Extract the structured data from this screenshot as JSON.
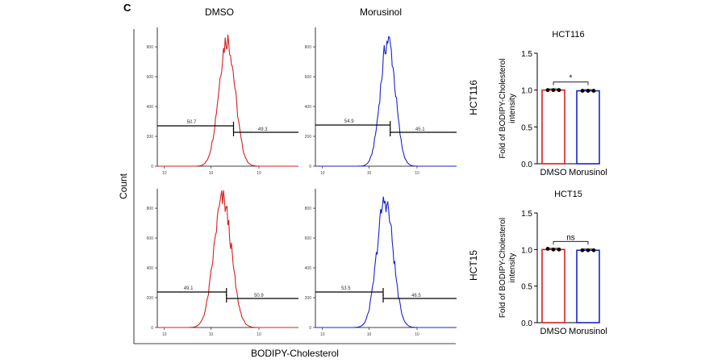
{
  "panel_label": "C",
  "columns": [
    "DMSO",
    "Morusinol"
  ],
  "rows": [
    "HCT116",
    "HCT15"
  ],
  "shared_y_label": "Count",
  "shared_x_label": "BODIPY-Cholesterol",
  "colors": {
    "dmso": "#d42020",
    "morusinol": "#1c24c8",
    "axis": "#000000"
  },
  "histogram_y_ticks": [
    "0",
    "200",
    "400",
    "600",
    "800"
  ],
  "histogram_x_ticks": [
    "10",
    "10",
    "10"
  ],
  "histograms": [
    {
      "row": "HCT116",
      "condition": "DMSO",
      "color": "#d42020",
      "gate_left": "50.7",
      "gate_right": "49.3"
    },
    {
      "row": "HCT116",
      "condition": "Morusinol",
      "color": "#1c24c8",
      "gate_left": "54.9",
      "gate_right": "45.1"
    },
    {
      "row": "HCT15",
      "condition": "DMSO",
      "color": "#d42020",
      "gate_left": "49.1",
      "gate_right": "50.9"
    },
    {
      "row": "HCT15",
      "condition": "Morusinol",
      "color": "#1c24c8",
      "gate_left": "53.5",
      "gate_right": "46.5"
    }
  ],
  "chart_data": [
    {
      "type": "bar",
      "title": "HCT116",
      "categories": [
        "DMSO",
        "Morusinol"
      ],
      "values": [
        1.0,
        0.99
      ],
      "points": [
        [
          1.0,
          1.0,
          1.0
        ],
        [
          0.99,
          0.99,
          0.99
        ]
      ],
      "bar_colors": [
        "#d42020",
        "#1c24c8"
      ],
      "ylabel_line1": "Fold of BODIPY-Cholesterol",
      "ylabel_line2": "intensity",
      "ylim": [
        0,
        1.5
      ],
      "yticks": [
        "0.0",
        "0.5",
        "1.0",
        "1.5"
      ],
      "significance": "*"
    },
    {
      "type": "bar",
      "title": "HCT15",
      "categories": [
        "DMSO",
        "Morusinol"
      ],
      "values": [
        1.0,
        0.99
      ],
      "points": [
        [
          1.01,
          1.0,
          1.0
        ],
        [
          0.99,
          0.99,
          0.99
        ]
      ],
      "bar_colors": [
        "#d42020",
        "#1c24c8"
      ],
      "ylabel_line1": "Fold of BODIPY-Cholesterol",
      "ylabel_line2": "intensity",
      "ylim": [
        0,
        1.5
      ],
      "yticks": [
        "0.0",
        "0.5",
        "1.0",
        "1.5"
      ],
      "significance": "ns"
    }
  ]
}
